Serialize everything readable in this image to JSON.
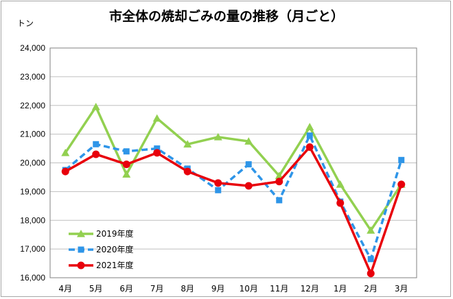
{
  "chart_data": {
    "type": "line",
    "title": "市全体の焼却ごみの量の推移（月ごと）",
    "ylabel": "トン",
    "xlabel": "",
    "ylim": [
      16000,
      24000
    ],
    "ytick_step": 1000,
    "ytick_labels": [
      "16,000",
      "17,000",
      "18,000",
      "19,000",
      "20,000",
      "21,000",
      "22,000",
      "23,000",
      "24,000"
    ],
    "categories": [
      "4月",
      "5月",
      "6月",
      "7月",
      "8月",
      "9月",
      "10月",
      "11月",
      "12月",
      "1月",
      "2月",
      "3月"
    ],
    "grid": true,
    "legend_position": "bottom-left",
    "series": [
      {
        "name": "2019年度",
        "color": "#92d050",
        "marker": "triangle",
        "dash": "solid",
        "values": [
          20350,
          21950,
          19600,
          21550,
          20650,
          20900,
          20750,
          19550,
          21250,
          19250,
          17650,
          19250
        ]
      },
      {
        "name": "2020年度",
        "color": "#2e95e8",
        "marker": "square",
        "dash": "dashed",
        "values": [
          19750,
          20650,
          20400,
          20500,
          19800,
          19050,
          19950,
          18700,
          20950,
          18650,
          16650,
          20100
        ]
      },
      {
        "name": "2021年度",
        "color": "#e8000b",
        "marker": "circle",
        "dash": "solid",
        "values": [
          19700,
          20300,
          19950,
          20350,
          19700,
          19300,
          19200,
          19350,
          20550,
          18600,
          16150,
          19250
        ]
      }
    ]
  }
}
